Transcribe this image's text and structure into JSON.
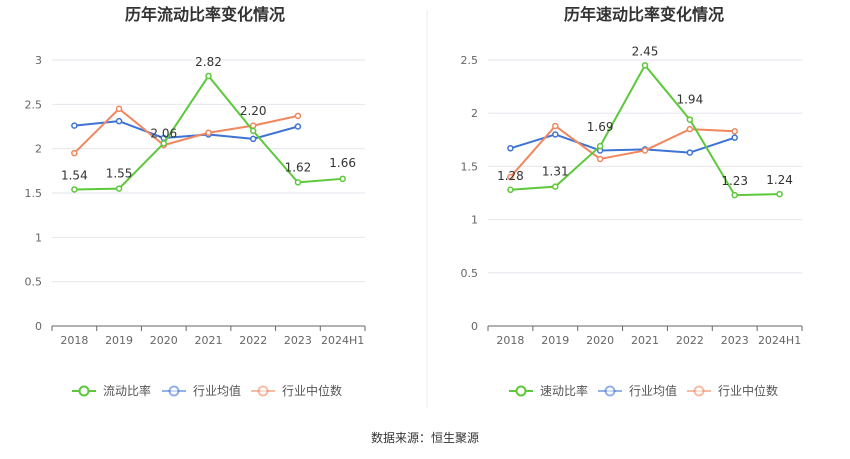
{
  "source": "数据来源：恒生聚源",
  "colors": {
    "company": "#5cc83a",
    "industry_avg": "#3e73d6",
    "industry_median": "#f0875e"
  },
  "chart_data": [
    {
      "type": "line",
      "title": "历年流动比率变化情况",
      "categories": [
        "2018",
        "2019",
        "2020",
        "2021",
        "2022",
        "2023",
        "2024H1"
      ],
      "ylim": [
        0,
        3
      ],
      "yticks": [
        "0",
        "0.5",
        "1",
        "1.5",
        "2",
        "2.5",
        "3"
      ],
      "grid": true,
      "legend_position": "bottom",
      "series": [
        {
          "name": "流动比率",
          "values": [
            1.54,
            1.55,
            2.06,
            2.82,
            2.2,
            1.62,
            1.66
          ],
          "labels": [
            "1.54",
            "1.55",
            "2.06",
            "2.82",
            "2.20",
            "1.62",
            "1.66"
          ]
        },
        {
          "name": "行业均值",
          "values": [
            2.26,
            2.31,
            2.12,
            2.16,
            2.11,
            2.25,
            null
          ]
        },
        {
          "name": "行业中位数",
          "values": [
            1.95,
            2.45,
            2.04,
            2.18,
            2.26,
            2.37,
            null
          ]
        }
      ]
    },
    {
      "type": "line",
      "title": "历年速动比率变化情况",
      "categories": [
        "2018",
        "2019",
        "2020",
        "2021",
        "2022",
        "2023",
        "2024H1"
      ],
      "ylim": [
        0,
        2.5
      ],
      "yticks": [
        "0",
        "0.5",
        "1",
        "1.5",
        "2",
        "2.5"
      ],
      "grid": true,
      "legend_position": "bottom",
      "series": [
        {
          "name": "速动比率",
          "values": [
            1.28,
            1.31,
            1.69,
            2.45,
            1.94,
            1.23,
            1.24
          ],
          "labels": [
            "1.28",
            "1.31",
            "1.69",
            "2.45",
            "1.94",
            "1.23",
            "1.24"
          ]
        },
        {
          "name": "行业均值",
          "values": [
            1.67,
            1.8,
            1.65,
            1.66,
            1.63,
            1.77,
            null
          ]
        },
        {
          "name": "行业中位数",
          "values": [
            1.4,
            1.88,
            1.57,
            1.65,
            1.85,
            1.83,
            null
          ]
        }
      ]
    }
  ]
}
